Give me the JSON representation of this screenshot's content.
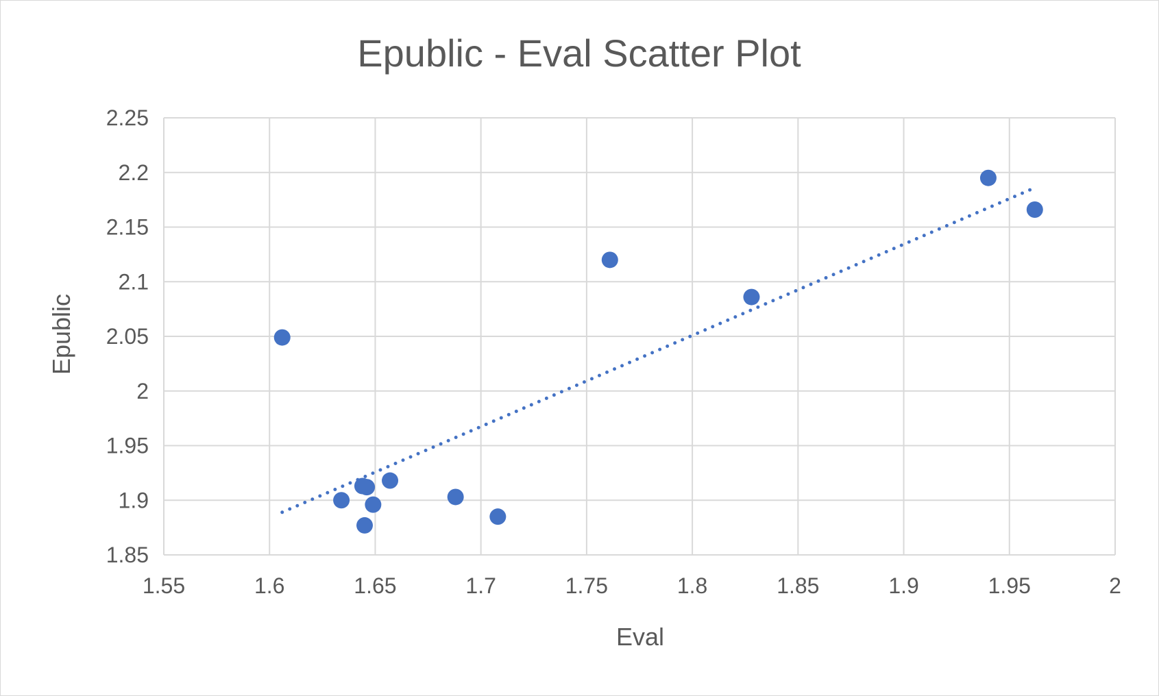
{
  "chart_data": {
    "type": "scatter",
    "title": "Epublic - Eval Scatter Plot",
    "xlabel": "Eval",
    "ylabel": "Epublic",
    "xlim": [
      1.55,
      2
    ],
    "ylim": [
      1.85,
      2.25
    ],
    "x_ticks": [
      "1.55",
      "1.6",
      "1.65",
      "1.7",
      "1.75",
      "1.8",
      "1.85",
      "1.9",
      "1.95",
      "2"
    ],
    "y_ticks": [
      "1.85",
      "1.9",
      "1.95",
      "2",
      "2.05",
      "2.1",
      "2.15",
      "2.2",
      "2.25"
    ],
    "grid": true,
    "legend": "none",
    "marker_color": "#4472c4",
    "trendline": {
      "type": "linear",
      "style": "dotted",
      "color": "#4472c4",
      "x": [
        1.606,
        1.962
      ],
      "y": [
        1.889,
        2.186
      ]
    },
    "points": [
      {
        "x": 1.606,
        "y": 2.049
      },
      {
        "x": 1.634,
        "y": 1.9
      },
      {
        "x": 1.644,
        "y": 1.913
      },
      {
        "x": 1.646,
        "y": 1.912
      },
      {
        "x": 1.645,
        "y": 1.877
      },
      {
        "x": 1.649,
        "y": 1.896
      },
      {
        "x": 1.657,
        "y": 1.918
      },
      {
        "x": 1.688,
        "y": 1.903
      },
      {
        "x": 1.708,
        "y": 1.885
      },
      {
        "x": 1.761,
        "y": 2.12
      },
      {
        "x": 1.828,
        "y": 2.086
      },
      {
        "x": 1.94,
        "y": 2.195
      },
      {
        "x": 1.962,
        "y": 2.166
      }
    ]
  }
}
